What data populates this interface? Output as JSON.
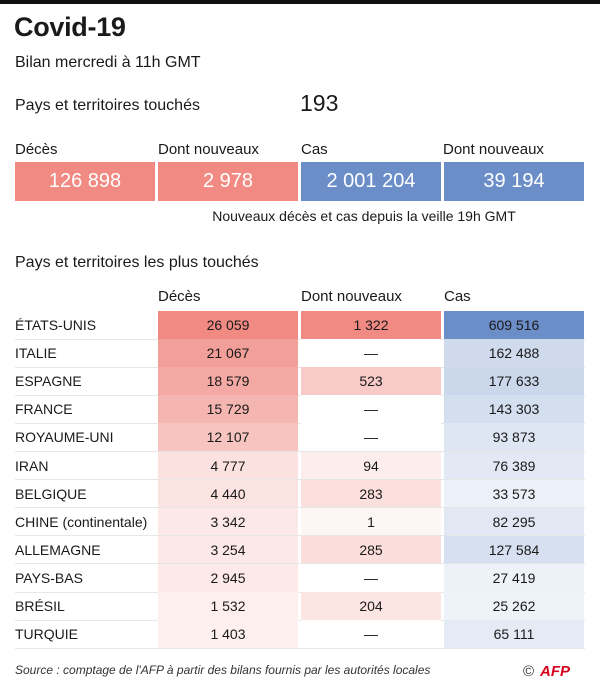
{
  "header": {
    "title": "Covid-19",
    "subtitle": "Bilan mercredi à 11h GMT"
  },
  "countries_touched": {
    "label": "Pays et territoires touchés",
    "value": "193"
  },
  "summary": {
    "headers": [
      "Décès",
      "Dont nouveaux",
      "Cas",
      "Dont nouveaux"
    ],
    "values": [
      "126 898",
      "2 978",
      "2 001 204",
      "39 194"
    ],
    "colors": [
      "#f08a83",
      "#f08a83",
      "#6b8ec9",
      "#6b8ec9"
    ],
    "note": "Nouveaux décès et cas depuis la veille 19h GMT"
  },
  "chart_data": {
    "type": "table",
    "title": "Pays et territoires les plus touchés",
    "columns": [
      "Décès",
      "Dont nouveaux",
      "Cas"
    ],
    "rows": [
      {
        "country": "ÉTATS-UNIS",
        "deaths": 26059,
        "new_deaths": 1322,
        "cases": 609516,
        "deaths_text": "26 059",
        "new_text": "1 322",
        "cases_text": "609 516"
      },
      {
        "country": "ITALIE",
        "deaths": 21067,
        "new_deaths": null,
        "cases": 162488,
        "deaths_text": "21 067",
        "new_text": "—",
        "cases_text": "162 488"
      },
      {
        "country": "ESPAGNE",
        "deaths": 18579,
        "new_deaths": 523,
        "cases": 177633,
        "deaths_text": "18 579",
        "new_text": "523",
        "cases_text": "177 633"
      },
      {
        "country": "FRANCE",
        "deaths": 15729,
        "new_deaths": null,
        "cases": 143303,
        "deaths_text": "15 729",
        "new_text": "—",
        "cases_text": "143 303"
      },
      {
        "country": "ROYAUME-UNI",
        "deaths": 12107,
        "new_deaths": null,
        "cases": 93873,
        "deaths_text": "12 107",
        "new_text": "—",
        "cases_text": "93 873"
      },
      {
        "country": "IRAN",
        "deaths": 4777,
        "new_deaths": 94,
        "cases": 76389,
        "deaths_text": "4 777",
        "new_text": "94",
        "cases_text": "76 389"
      },
      {
        "country": "BELGIQUE",
        "deaths": 4440,
        "new_deaths": 283,
        "cases": 33573,
        "deaths_text": "4 440",
        "new_text": "283",
        "cases_text": "33 573"
      },
      {
        "country": "CHINE (continentale)",
        "deaths": 3342,
        "new_deaths": 1,
        "cases": 82295,
        "deaths_text": "3 342",
        "new_text": "1",
        "cases_text": "82 295"
      },
      {
        "country": "ALLEMAGNE",
        "deaths": 3254,
        "new_deaths": 285,
        "cases": 127584,
        "deaths_text": "3 254",
        "new_text": "285",
        "cases_text": "127 584"
      },
      {
        "country": "PAYS-BAS",
        "deaths": 2945,
        "new_deaths": null,
        "cases": 27419,
        "deaths_text": "2 945",
        "new_text": "—",
        "cases_text": "27 419"
      },
      {
        "country": "BRÉSIL",
        "deaths": 1532,
        "new_deaths": 204,
        "cases": 25262,
        "deaths_text": "1 532",
        "new_text": "204",
        "cases_text": "25 262"
      },
      {
        "country": "TURQUIE",
        "deaths": 1403,
        "new_deaths": null,
        "cases": 65111,
        "deaths_text": "1 403",
        "new_text": "—",
        "cases_text": "65 111"
      }
    ],
    "heat_colors": {
      "deaths": "#f08a83",
      "cases": "#6b8ec9"
    }
  },
  "footer": {
    "source": "Source : comptage de l'AFP à partir des bilans fournis par les autorités locales",
    "copyright": "©",
    "logo_text": "AFP",
    "logo_color": "#d6001c"
  }
}
